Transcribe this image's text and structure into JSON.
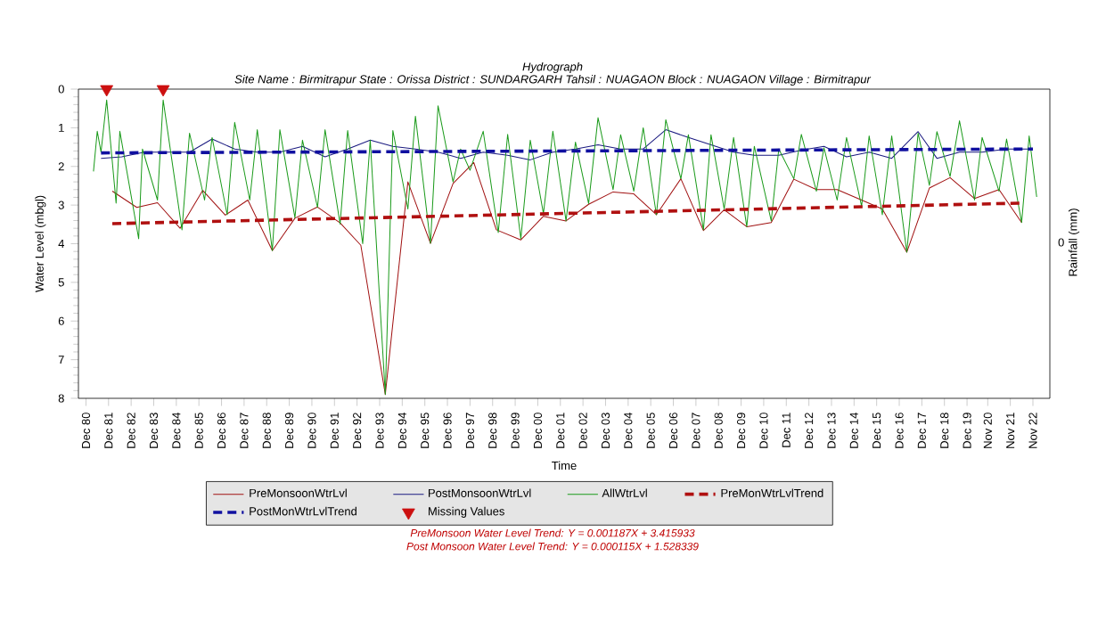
{
  "chart_data": {
    "type": "line",
    "title": "Hydrograph",
    "subtitle": "Site Name : Birmitrapur  State : Orissa District : SUNDARGARH  Tahsil : NUAGAON  Block : NUAGAON Village : Birmitrapur",
    "xlabel": "Time",
    "ylabel": "Water Level (mbgl)",
    "y2label": "Rainfall (mm)",
    "xlim": [
      "1980-08",
      "2023-08"
    ],
    "xticks": [
      {
        "value": "1980-12",
        "label": "Dec 80"
      },
      {
        "value": "1981-12",
        "label": "Dec 81"
      },
      {
        "value": "1982-12",
        "label": "Dec 82"
      },
      {
        "value": "1983-12",
        "label": "Dec 83"
      },
      {
        "value": "1984-12",
        "label": "Dec 84"
      },
      {
        "value": "1985-12",
        "label": "Dec 85"
      },
      {
        "value": "1986-12",
        "label": "Dec 86"
      },
      {
        "value": "1987-12",
        "label": "Dec 87"
      },
      {
        "value": "1988-12",
        "label": "Dec 88"
      },
      {
        "value": "1989-12",
        "label": "Dec 89"
      },
      {
        "value": "1990-12",
        "label": "Dec 90"
      },
      {
        "value": "1991-12",
        "label": "Dec 91"
      },
      {
        "value": "1992-12",
        "label": "Dec 92"
      },
      {
        "value": "1993-12",
        "label": "Dec 93"
      },
      {
        "value": "1994-12",
        "label": "Dec 94"
      },
      {
        "value": "1995-12",
        "label": "Dec 95"
      },
      {
        "value": "1996-12",
        "label": "Dec 96"
      },
      {
        "value": "1997-12",
        "label": "Dec 97"
      },
      {
        "value": "1998-12",
        "label": "Dec 98"
      },
      {
        "value": "1999-12",
        "label": "Dec 99"
      },
      {
        "value": "2000-12",
        "label": "Dec 00"
      },
      {
        "value": "2001-12",
        "label": "Dec 01"
      },
      {
        "value": "2002-12",
        "label": "Dec 02"
      },
      {
        "value": "2003-12",
        "label": "Dec 03"
      },
      {
        "value": "2004-12",
        "label": "Dec 04"
      },
      {
        "value": "2005-12",
        "label": "Dec 05"
      },
      {
        "value": "2006-12",
        "label": "Dec 06"
      },
      {
        "value": "2007-12",
        "label": "Dec 07"
      },
      {
        "value": "2008-12",
        "label": "Dec 08"
      },
      {
        "value": "2009-12",
        "label": "Dec 09"
      },
      {
        "value": "2010-12",
        "label": "Dec 10"
      },
      {
        "value": "2011-12",
        "label": "Dec 11"
      },
      {
        "value": "2012-12",
        "label": "Dec 12"
      },
      {
        "value": "2013-12",
        "label": "Dec 13"
      },
      {
        "value": "2014-12",
        "label": "Dec 14"
      },
      {
        "value": "2015-12",
        "label": "Dec 15"
      },
      {
        "value": "2016-12",
        "label": "Dec 16"
      },
      {
        "value": "2017-12",
        "label": "Dec 17"
      },
      {
        "value": "2018-12",
        "label": "Dec 18"
      },
      {
        "value": "2019-12",
        "label": "Dec 19"
      },
      {
        "value": "2020-11",
        "label": "Nov 20"
      },
      {
        "value": "2021-11",
        "label": "Nov 21"
      },
      {
        "value": "2022-11",
        "label": "Nov 22"
      }
    ],
    "ylim": [
      8,
      0
    ],
    "yticks": [
      0,
      1,
      2,
      3,
      4,
      5,
      6,
      7,
      8
    ],
    "legend": "bottom",
    "series": [
      {
        "name": "PreMonsoonWtrLvl",
        "color": "#a01010",
        "x": [
          "1982-02",
          "1983-03",
          "1984-02",
          "1985-02",
          "1986-02",
          "1987-02",
          "1988-02",
          "1989-03",
          "1990-03",
          "1991-03",
          "1992-03",
          "1993-02",
          "1994-03",
          "1995-03",
          "1996-03",
          "1997-03",
          "1998-02",
          "1999-02",
          "2000-03",
          "2001-03",
          "2002-03",
          "2003-03",
          "2004-04",
          "2005-03",
          "2006-03",
          "2007-04",
          "2008-04",
          "2009-03",
          "2010-03",
          "2011-04",
          "2012-04",
          "2013-04",
          "2014-03",
          "2015-04",
          "2016-03",
          "2017-04",
          "2018-04",
          "2019-03",
          "2020-04",
          "2021-05",
          "2022-05"
        ],
        "values": [
          2.64,
          3.06,
          2.94,
          3.6,
          2.62,
          3.26,
          2.87,
          4.18,
          3.34,
          3.05,
          3.46,
          4.04,
          7.9,
          2.4,
          3.99,
          2.44,
          1.9,
          3.64,
          3.9,
          3.29,
          3.41,
          2.98,
          2.66,
          2.71,
          3.25,
          2.32,
          3.66,
          3.12,
          3.56,
          3.45,
          2.33,
          2.6,
          2.6,
          2.87,
          3.1,
          4.22,
          2.56,
          2.29,
          2.83,
          2.6,
          3.45
        ]
      },
      {
        "name": "PostMonsoonWtrLvl",
        "color": "#1a1a80",
        "x": [
          "1981-08",
          "1982-07",
          "1983-07",
          "1984-06",
          "1985-07",
          "1986-07",
          "1987-07",
          "1988-07",
          "1989-07",
          "1990-07",
          "1991-07",
          "1992-07",
          "1993-07",
          "1994-07",
          "1995-07",
          "1996-07",
          "1997-07",
          "1998-07",
          "1999-08",
          "2000-08",
          "2001-08",
          "2002-08",
          "2003-08",
          "2004-08",
          "2005-08",
          "2006-08",
          "2007-08",
          "2008-08",
          "2009-08",
          "2010-07",
          "2011-08",
          "2012-08",
          "2013-08",
          "2014-08",
          "2015-08",
          "2016-08",
          "2017-10",
          "2018-08",
          "2019-08",
          "2020-08",
          "2021-09",
          "2022-09"
        ],
        "values": [
          1.79,
          1.75,
          1.63,
          1.63,
          1.63,
          1.29,
          1.55,
          1.63,
          1.63,
          1.48,
          1.75,
          1.55,
          1.32,
          1.48,
          1.55,
          1.63,
          1.79,
          1.63,
          1.71,
          1.83,
          1.63,
          1.55,
          1.44,
          1.55,
          1.55,
          1.05,
          1.25,
          1.44,
          1.63,
          1.71,
          1.71,
          1.58,
          1.48,
          1.75,
          1.63,
          1.79,
          1.1,
          1.79,
          1.63,
          1.63,
          1.55,
          1.55
        ]
      },
      {
        "name": "AllWtrLvl",
        "color": "#1a9a1a",
        "x": [
          "1981-04",
          "1981-06",
          "1981-08",
          "1981-11",
          "1982-04",
          "1982-06",
          "1983-04",
          "1983-06",
          "1984-02",
          "1984-05",
          "1985-03",
          "1985-07",
          "1986-03",
          "1986-07",
          "1987-03",
          "1987-07",
          "1988-03",
          "1988-07",
          "1989-03",
          "1989-07",
          "1990-03",
          "1990-07",
          "1991-03",
          "1991-07",
          "1992-03",
          "1992-07",
          "1993-03",
          "1993-07",
          "1994-03",
          "1994-07",
          "1995-03",
          "1995-07",
          "1996-03",
          "1996-07",
          "1997-03",
          "1997-07",
          "1997-12",
          "1998-07",
          "1999-03",
          "1999-08",
          "2000-03",
          "2000-08",
          "2001-03",
          "2001-08",
          "2002-03",
          "2002-08",
          "2003-03",
          "2003-08",
          "2004-04",
          "2004-08",
          "2005-03",
          "2005-08",
          "2006-03",
          "2006-08",
          "2007-04",
          "2007-08",
          "2008-04",
          "2008-08",
          "2009-03",
          "2009-08",
          "2010-03",
          "2010-07",
          "2011-04",
          "2011-08",
          "2012-04",
          "2012-08",
          "2013-04",
          "2013-08",
          "2014-03",
          "2014-08",
          "2015-04",
          "2015-08",
          "2016-03",
          "2016-08",
          "2017-04",
          "2017-10",
          "2018-04",
          "2018-08",
          "2019-03",
          "2019-08",
          "2020-04",
          "2020-08",
          "2021-05",
          "2021-09",
          "2022-05",
          "2022-09",
          "2023-01"
        ],
        "values": [
          2.13,
          1.09,
          1.63,
          0.28,
          2.95,
          1.09,
          3.87,
          1.55,
          2.87,
          0.28,
          3.64,
          1.14,
          2.87,
          1.25,
          3.25,
          0.86,
          2.87,
          1.05,
          4.18,
          1.05,
          3.33,
          1.32,
          3.06,
          1.05,
          3.49,
          1.07,
          4.0,
          1.32,
          7.9,
          1.07,
          3.1,
          0.7,
          3.99,
          0.43,
          2.4,
          1.55,
          2.1,
          1.09,
          3.71,
          1.17,
          3.87,
          1.32,
          3.22,
          1.09,
          3.41,
          1.37,
          2.96,
          0.74,
          2.6,
          1.18,
          2.64,
          1.0,
          3.25,
          0.79,
          2.32,
          1.18,
          3.64,
          1.18,
          3.1,
          1.25,
          3.56,
          1.48,
          3.41,
          1.55,
          2.32,
          1.17,
          2.64,
          1.52,
          2.87,
          1.25,
          3.03,
          1.21,
          3.25,
          1.21,
          4.22,
          1.14,
          2.49,
          1.1,
          2.26,
          0.82,
          2.87,
          1.25,
          2.64,
          1.29,
          3.45,
          1.21,
          2.79
        ]
      },
      {
        "name": "PreMonWtrLvlTrend",
        "line_style": "dashed",
        "color": "#b01010",
        "x": [
          "1982-02",
          "2022-04"
        ],
        "values": [
          3.48,
          2.95
        ]
      },
      {
        "name": "PostMonWtrLvlTrend",
        "line_style": "dashed",
        "color": "#1010a0",
        "x": [
          "1981-08",
          "2022-11"
        ],
        "values": [
          1.65,
          1.55
        ]
      },
      {
        "name": "Missing Values",
        "type": "scatter",
        "marker": "triangle",
        "color": "#cc1010",
        "x": [
          "1981-11",
          "1984-05"
        ],
        "values": [
          0,
          0
        ]
      }
    ],
    "annotations": [
      "0",
      "PreMonsoon Water Level Trend: Y = 0.001187X + 3.415933",
      "Post Monsoon Water Level Trend: Y = 0.000115X + 1.528339"
    ]
  }
}
